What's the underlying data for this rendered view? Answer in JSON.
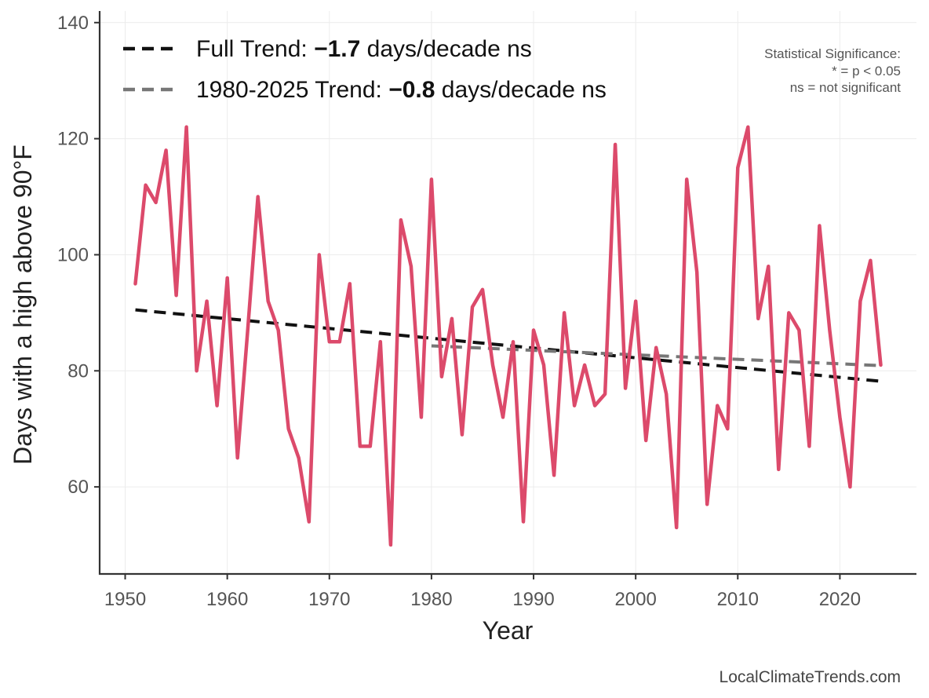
{
  "chart_data": {
    "type": "line",
    "xlabel": "Year",
    "ylabel": "Days with a high above 90°F",
    "xlim": [
      1947.5,
      2027.5
    ],
    "ylim": [
      45,
      142
    ],
    "x_ticks": [
      1950,
      1960,
      1970,
      1980,
      1990,
      2000,
      2010,
      2020
    ],
    "y_ticks": [
      60,
      80,
      100,
      120,
      140
    ],
    "grid": true,
    "series": [
      {
        "name": "Days above 90°F",
        "color": "#dc4a6b",
        "x": [
          1951,
          1952,
          1953,
          1954,
          1955,
          1956,
          1957,
          1958,
          1959,
          1960,
          1961,
          1962,
          1963,
          1964,
          1965,
          1966,
          1967,
          1968,
          1969,
          1970,
          1971,
          1972,
          1973,
          1974,
          1975,
          1976,
          1977,
          1978,
          1979,
          1980,
          1981,
          1982,
          1983,
          1984,
          1985,
          1986,
          1987,
          1988,
          1989,
          1990,
          1991,
          1992,
          1993,
          1994,
          1995,
          1996,
          1997,
          1998,
          1999,
          2000,
          2001,
          2002,
          2003,
          2004,
          2005,
          2006,
          2007,
          2008,
          2009,
          2010,
          2011,
          2012,
          2013,
          2014,
          2015,
          2016,
          2017,
          2018,
          2019,
          2020,
          2021,
          2022,
          2023,
          2024
        ],
        "values": [
          95,
          112,
          109,
          118,
          93,
          122,
          80,
          92,
          74,
          96,
          65,
          87,
          110,
          92,
          87,
          70,
          65,
          54,
          100,
          85,
          85,
          95,
          67,
          67,
          85,
          50,
          106,
          98,
          72,
          113,
          79,
          89,
          69,
          91,
          94,
          81,
          72,
          85,
          54,
          87,
          81,
          62,
          90,
          74,
          81,
          74,
          76,
          119,
          77,
          92,
          68,
          84,
          76,
          53,
          113,
          97,
          57,
          74,
          70,
          115,
          122,
          89,
          98,
          63,
          90,
          87,
          67,
          105,
          87,
          72,
          60,
          92,
          99,
          81
        ]
      }
    ],
    "trends": [
      {
        "name": "Full Trend",
        "color": "#111111",
        "x": [
          1951,
          2024
        ],
        "values": [
          90.5,
          78.2
        ],
        "legend_prefix": "Full Trend: ",
        "legend_value": "−1.7",
        "legend_suffix": " days/decade ns"
      },
      {
        "name": "1980-2025 Trend",
        "color": "#777777",
        "x": [
          1980,
          2024
        ],
        "values": [
          84.3,
          80.9
        ],
        "legend_prefix": "1980-2025 Trend: ",
        "legend_value": "−0.8",
        "legend_suffix": " days/decade ns"
      }
    ],
    "annotation": {
      "title": "Statistical Significance:",
      "line1": "* = p < 0.05",
      "line2": "ns = not significant"
    },
    "source": "LocalClimateTrends.com"
  }
}
